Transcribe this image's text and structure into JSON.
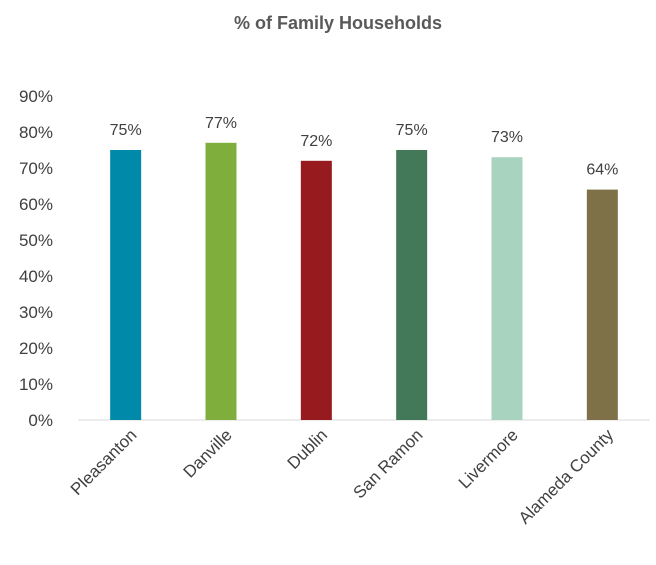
{
  "chart_data": {
    "type": "bar",
    "title": "% of Family Households",
    "xlabel": "",
    "ylabel": "",
    "categories": [
      "Pleasanton",
      "Danville",
      "Dublin",
      "San Ramon",
      "Livermore",
      "Alameda County"
    ],
    "values": [
      75,
      77,
      72,
      75,
      73,
      64
    ],
    "data_labels": [
      "75%",
      "77%",
      "72%",
      "75%",
      "73%",
      "64%"
    ],
    "colors": [
      "#0089A8",
      "#7FAE3D",
      "#961A1E",
      "#437858",
      "#A8D4BF",
      "#7E7148"
    ],
    "ylim": [
      0,
      90
    ],
    "yticks": [
      0,
      10,
      20,
      30,
      40,
      50,
      60,
      70,
      80,
      90
    ],
    "ytick_labels": [
      "0%",
      "10%",
      "20%",
      "30%",
      "40%",
      "50%",
      "60%",
      "70%",
      "80%",
      "90%"
    ],
    "grid": false,
    "legend": "none"
  }
}
